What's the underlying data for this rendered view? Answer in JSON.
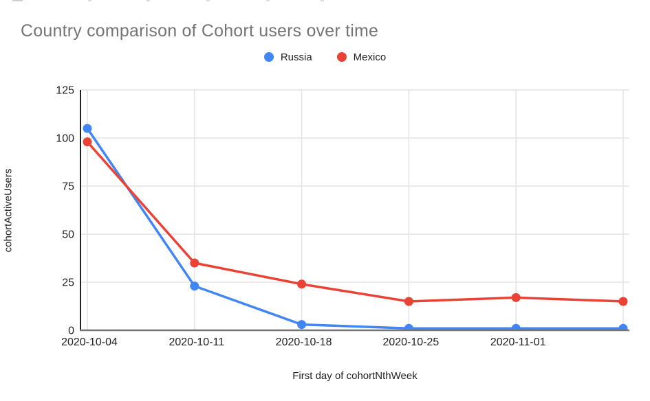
{
  "chart_data": {
    "type": "line",
    "title": "Country comparison of Cohort users over time",
    "xlabel": "First day of cohortNthWeek",
    "ylabel": "cohortActiveUsers",
    "categories": [
      "2020-10-04",
      "2020-10-11",
      "2020-10-18",
      "2020-10-25",
      "2020-11-01",
      ""
    ],
    "series": [
      {
        "name": "Russia",
        "color": "#4285F4",
        "values": [
          105,
          23,
          3,
          1,
          1,
          1
        ]
      },
      {
        "name": "Mexico",
        "color": "#EA4335",
        "values": [
          98,
          35,
          24,
          15,
          17,
          15
        ]
      }
    ],
    "ylim": [
      0,
      125
    ],
    "yticks": [
      0,
      25,
      50,
      75,
      100,
      125
    ],
    "grid": true,
    "legend_position": "top center",
    "colors": {
      "title_text": "#757575",
      "axis_text": "#202124",
      "gridline": "#e3e3e3",
      "y_axis_line": "#212121",
      "x_axis_line": "#757575",
      "background": "#ffffff"
    }
  }
}
